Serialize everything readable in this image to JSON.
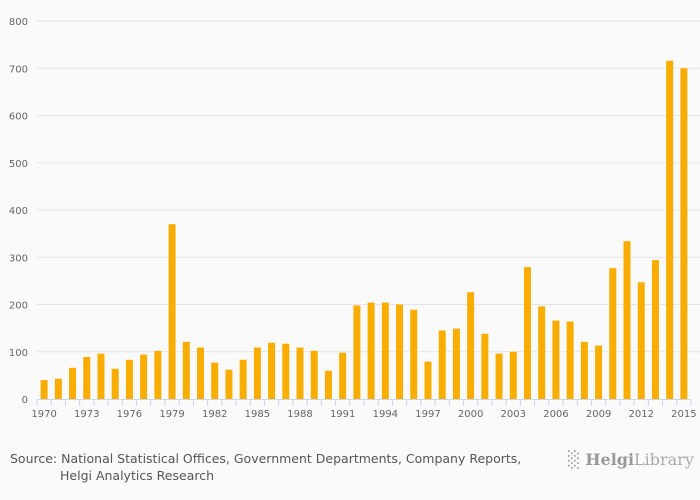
{
  "chart_data": {
    "type": "bar",
    "title": "",
    "xlabel": "",
    "ylabel": "",
    "ylim": [
      0,
      800
    ],
    "yticks": [
      0,
      100,
      200,
      300,
      400,
      500,
      600,
      700,
      800
    ],
    "grid": true,
    "bar_color": "#f9ad00",
    "categories": [
      1970,
      1971,
      1972,
      1973,
      1974,
      1975,
      1976,
      1977,
      1978,
      1979,
      1980,
      1981,
      1982,
      1983,
      1984,
      1985,
      1986,
      1987,
      1988,
      1989,
      1990,
      1991,
      1992,
      1993,
      1994,
      1995,
      1996,
      1997,
      1998,
      1999,
      2000,
      2001,
      2002,
      2003,
      2004,
      2005,
      2006,
      2007,
      2008,
      2009,
      2010,
      2011,
      2012,
      2013,
      2014,
      2015
    ],
    "xtick_labels": [
      "1970",
      "1973",
      "1976",
      "1979",
      "1982",
      "1985",
      "1988",
      "1991",
      "1994",
      "1997",
      "2000",
      "2003",
      "2006",
      "2009",
      "2012",
      "2015"
    ],
    "values": [
      40,
      43,
      66,
      89,
      96,
      64,
      83,
      94,
      102,
      370,
      121,
      109,
      77,
      62,
      83,
      109,
      119,
      117,
      109,
      102,
      60,
      98,
      198,
      204,
      204,
      200,
      189,
      79,
      145,
      149,
      226,
      138,
      96,
      100,
      279,
      196,
      166,
      164,
      121,
      113,
      277,
      334,
      247,
      294,
      716,
      700
    ]
  },
  "footer": {
    "source_line1": "Source: National Statistical Offices, Government Departments, Company Reports,",
    "source_line2": "Helgi Analytics Research",
    "logo_helgi": "Helgi",
    "logo_library": "Library"
  }
}
